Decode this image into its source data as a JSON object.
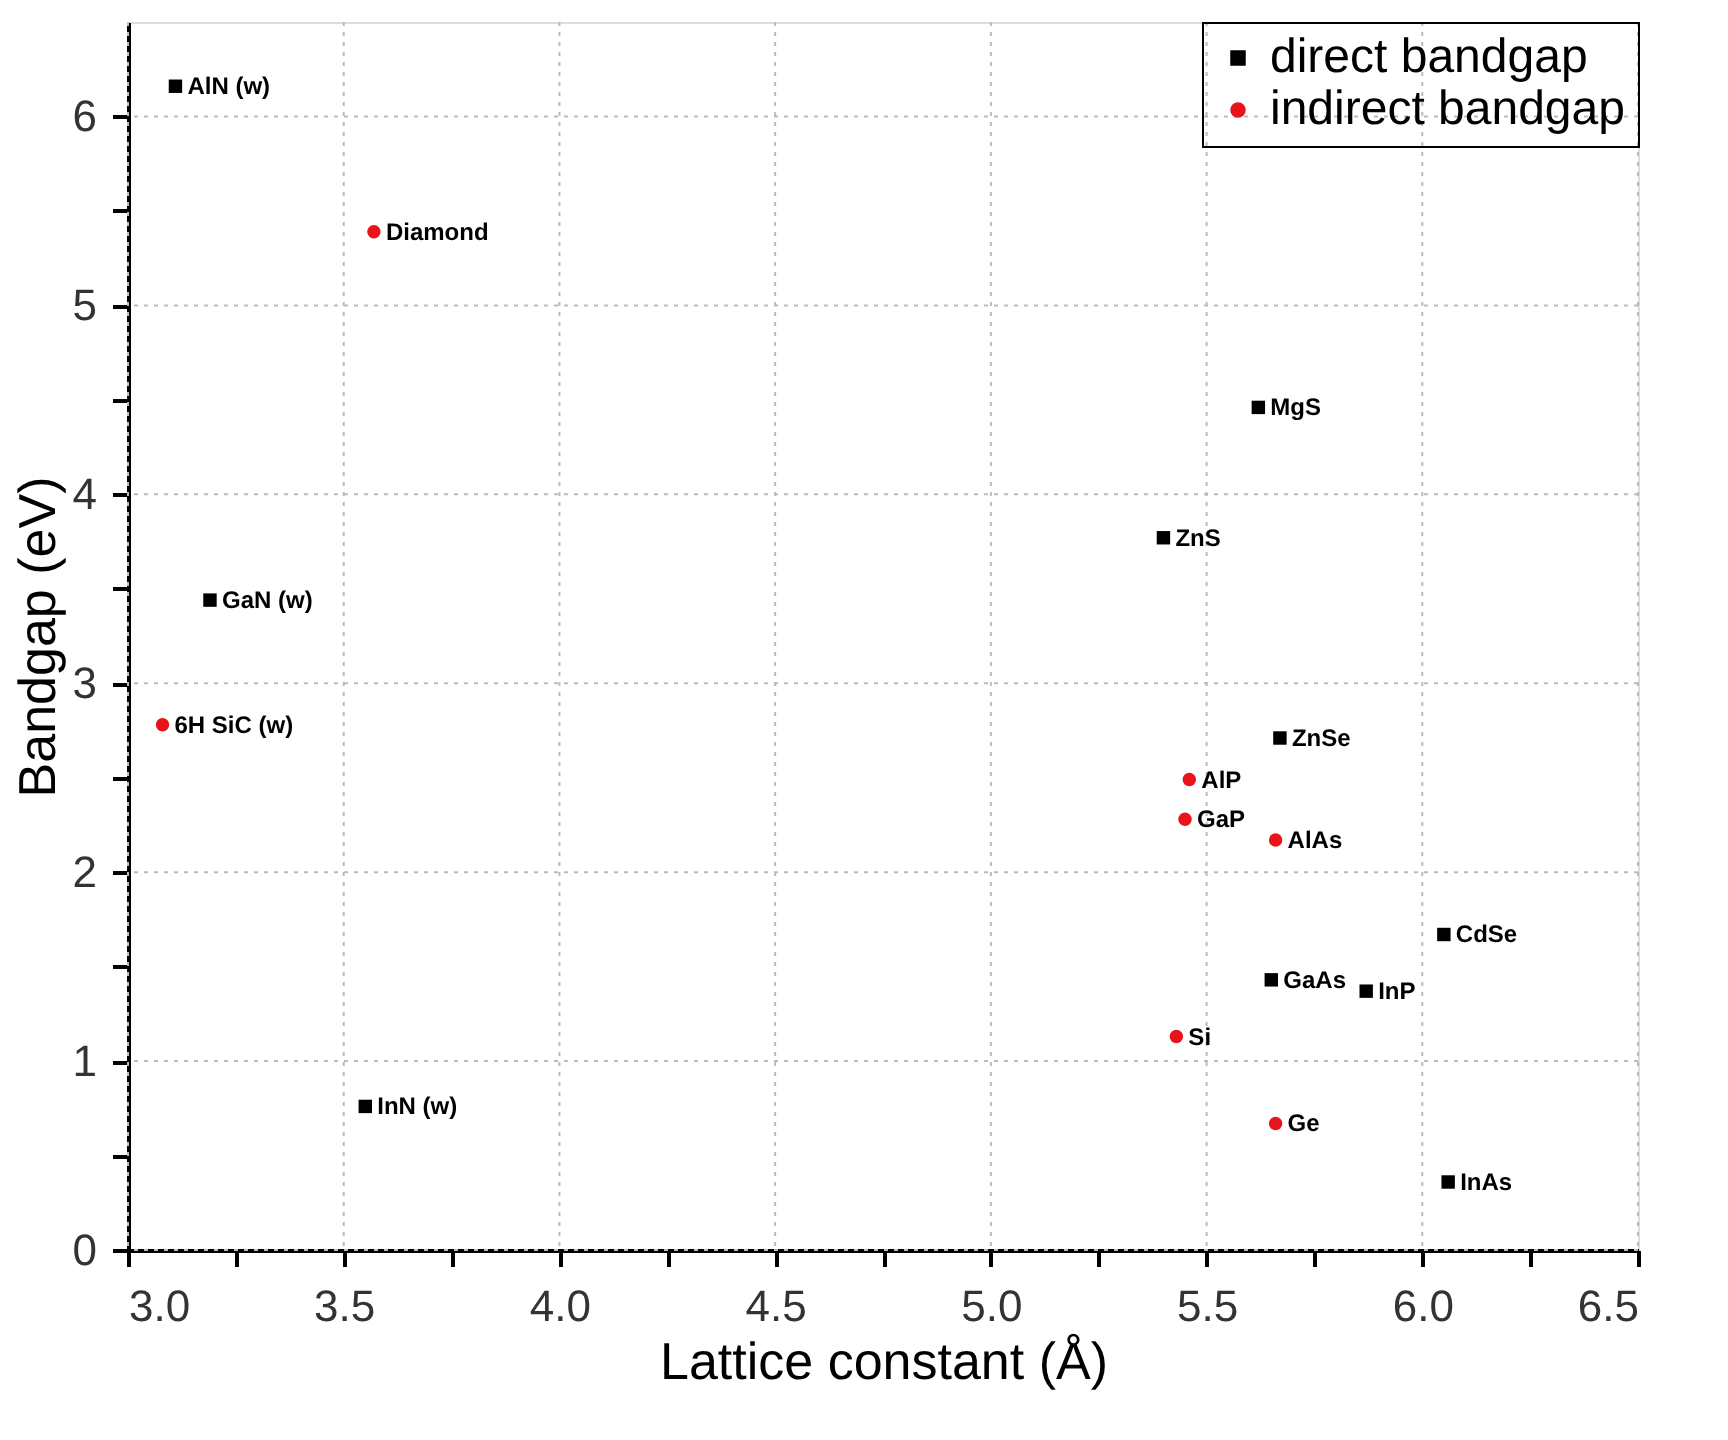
{
  "chart_data": {
    "type": "scatter",
    "xlabel": "Lattice constant (Å)",
    "ylabel": "Bandgap (eV)",
    "xlim": [
      3.0,
      6.5
    ],
    "ylim": [
      0,
      6.5
    ],
    "xticks": [
      {
        "value": 3,
        "label": "3.0"
      },
      {
        "value": 3.25,
        "label": null
      },
      {
        "value": 3.5,
        "label": "3.5"
      },
      {
        "value": 3.75,
        "label": null
      },
      {
        "value": 4,
        "label": "4.0"
      },
      {
        "value": 4.25,
        "label": null
      },
      {
        "value": 4.5,
        "label": "4.5"
      },
      {
        "value": 4.75,
        "label": null
      },
      {
        "value": 5,
        "label": "5.0"
      },
      {
        "value": 5.25,
        "label": null
      },
      {
        "value": 5.5,
        "label": "5.5"
      },
      {
        "value": 5.75,
        "label": null
      },
      {
        "value": 6,
        "label": "6.0"
      },
      {
        "value": 6.25,
        "label": null
      },
      {
        "value": 6.5,
        "label": "6.5"
      }
    ],
    "yticks": [
      0,
      {
        "value": 0.5,
        "label": null
      },
      1,
      {
        "value": 1.5,
        "label": null
      },
      2,
      {
        "value": 2.5,
        "label": null
      },
      3,
      {
        "value": 3.5,
        "label": null
      },
      4,
      {
        "value": 4.5,
        "label": null
      },
      5,
      {
        "value": 5.5,
        "label": null
      },
      6
    ],
    "grid": true,
    "legend": "top right",
    "series": [
      {
        "name": "direct bandgap",
        "color": "#000000",
        "marker": "square",
        "x": [
          3.11,
          3.19,
          3.55,
          5.62,
          5.4,
          5.67,
          6.05,
          5.65,
          5.87,
          6.06
        ],
        "values": [
          6.16,
          3.44,
          0.76,
          4.46,
          3.77,
          2.71,
          1.67,
          1.43,
          1.37,
          0.36
        ]
      },
      {
        "name": "indirect bandgap",
        "color": "#e8141a",
        "marker": "circle",
        "x": [
          3.57,
          3.08,
          5.46,
          5.45,
          5.66,
          5.43,
          5.66
        ],
        "values": [
          5.39,
          2.78,
          2.49,
          2.28,
          2.17,
          1.13,
          0.67
        ]
      }
    ],
    "annotations": [
      {
        "text": "AlN (w)",
        "x": 3.11,
        "y": 6.16
      },
      {
        "text": "GaN (w)",
        "x": 3.19,
        "y": 3.44
      },
      {
        "text": "InN (w)",
        "x": 3.55,
        "y": 0.76
      },
      {
        "text": "MgS",
        "x": 5.62,
        "y": 4.46
      },
      {
        "text": "ZnS",
        "x": 5.4,
        "y": 3.77
      },
      {
        "text": "ZnSe",
        "x": 5.67,
        "y": 2.71
      },
      {
        "text": "CdSe",
        "x": 6.05,
        "y": 1.67
      },
      {
        "text": "GaAs",
        "x": 5.65,
        "y": 1.43
      },
      {
        "text": "InP",
        "x": 5.87,
        "y": 1.37
      },
      {
        "text": "InAs",
        "x": 6.06,
        "y": 0.36
      },
      {
        "text": "Diamond",
        "x": 3.57,
        "y": 5.39
      },
      {
        "text": "6H SiC (w)",
        "x": 3.08,
        "y": 2.78
      },
      {
        "text": "AlP",
        "x": 5.46,
        "y": 2.49
      },
      {
        "text": "GaP",
        "x": 5.45,
        "y": 2.28
      },
      {
        "text": "AlAs",
        "x": 5.66,
        "y": 2.17
      },
      {
        "text": "Si",
        "x": 5.43,
        "y": 1.13
      },
      {
        "text": "Ge",
        "x": 5.66,
        "y": 0.67
      }
    ]
  }
}
